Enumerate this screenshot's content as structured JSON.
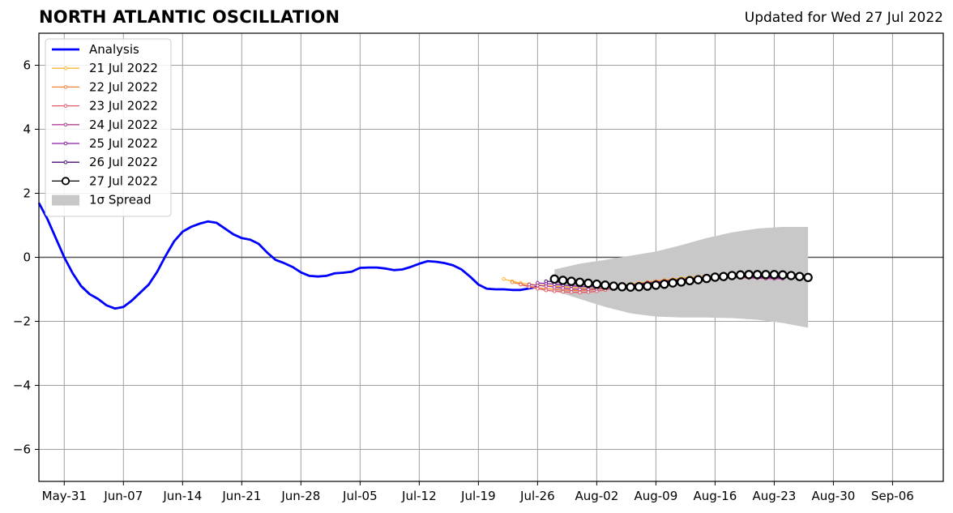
{
  "chart_data": {
    "type": "line",
    "title": "NORTH ATLANTIC OSCILLATION",
    "subtitle": "Updated for Wed 27 Jul 2022",
    "xlabel": "",
    "ylabel": "",
    "xlim": [
      "2022-05-28",
      "2022-09-12"
    ],
    "ylim": [
      -7,
      7
    ],
    "grid": true,
    "legend_position": "top-left",
    "x_tick_labels": [
      "May-31",
      "Jun-07",
      "Jun-14",
      "Jun-21",
      "Jun-28",
      "Jul-05",
      "Jul-12",
      "Jul-19",
      "Jul-26",
      "Aug-02",
      "Aug-09",
      "Aug-16",
      "Aug-23",
      "Aug-30",
      "Sep-06"
    ],
    "x_ticks": [
      "2022-05-31",
      "2022-06-07",
      "2022-06-14",
      "2022-06-21",
      "2022-06-28",
      "2022-07-05",
      "2022-07-12",
      "2022-07-19",
      "2022-07-26",
      "2022-08-02",
      "2022-08-09",
      "2022-08-16",
      "2022-08-23",
      "2022-08-30",
      "2022-09-06"
    ],
    "y_ticks": [
      6,
      4,
      2,
      0,
      -2,
      -4,
      -6
    ],
    "y_tick_labels": [
      "6",
      "4",
      "2",
      "0",
      "−2",
      "−4",
      "−6"
    ],
    "series": [
      {
        "name": "Analysis",
        "color": "#0000ff",
        "x": [
          "2022-05-28",
          "2022-05-29",
          "2022-05-30",
          "2022-05-31",
          "2022-06-01",
          "2022-06-02",
          "2022-06-03",
          "2022-06-04",
          "2022-06-05",
          "2022-06-06",
          "2022-06-07",
          "2022-06-08",
          "2022-06-09",
          "2022-06-10",
          "2022-06-11",
          "2022-06-12",
          "2022-06-13",
          "2022-06-14",
          "2022-06-15",
          "2022-06-16",
          "2022-06-17",
          "2022-06-18",
          "2022-06-19",
          "2022-06-20",
          "2022-06-21",
          "2022-06-22",
          "2022-06-23",
          "2022-06-24",
          "2022-06-25",
          "2022-06-26",
          "2022-06-27",
          "2022-06-28",
          "2022-06-29",
          "2022-06-30",
          "2022-07-01",
          "2022-07-02",
          "2022-07-03",
          "2022-07-04",
          "2022-07-05",
          "2022-07-06",
          "2022-07-07",
          "2022-07-08",
          "2022-07-09",
          "2022-07-10",
          "2022-07-11",
          "2022-07-12",
          "2022-07-13",
          "2022-07-14",
          "2022-07-15",
          "2022-07-16",
          "2022-07-17",
          "2022-07-18",
          "2022-07-19",
          "2022-07-20",
          "2022-07-21",
          "2022-07-22",
          "2022-07-23",
          "2022-07-24",
          "2022-07-25",
          "2022-07-26"
        ],
        "values": [
          1.7,
          1.2,
          0.6,
          0.0,
          -0.5,
          -0.9,
          -1.15,
          -1.3,
          -1.5,
          -1.6,
          -1.55,
          -1.35,
          -1.1,
          -0.85,
          -0.45,
          0.05,
          0.5,
          0.8,
          0.95,
          1.05,
          1.12,
          1.08,
          0.9,
          0.72,
          0.6,
          0.55,
          0.42,
          0.15,
          -0.08,
          -0.18,
          -0.3,
          -0.47,
          -0.58,
          -0.6,
          -0.58,
          -0.5,
          -0.48,
          -0.45,
          -0.33,
          -0.32,
          -0.32,
          -0.35,
          -0.4,
          -0.38,
          -0.3,
          -0.2,
          -0.12,
          -0.14,
          -0.18,
          -0.25,
          -0.38,
          -0.6,
          -0.85,
          -0.98,
          -1.0,
          -1.0,
          -1.02,
          -1.02,
          -0.97,
          -0.92
        ]
      },
      {
        "name": "21 Jul 2022",
        "color": "#fcb634",
        "x": [
          "2022-07-22",
          "2022-07-23",
          "2022-07-24",
          "2022-07-25",
          "2022-07-26",
          "2022-07-27",
          "2022-07-28",
          "2022-07-29",
          "2022-07-30",
          "2022-07-31",
          "2022-08-01",
          "2022-08-02",
          "2022-08-03",
          "2022-08-04",
          "2022-08-05",
          "2022-08-06",
          "2022-08-07",
          "2022-08-08",
          "2022-08-09",
          "2022-08-10",
          "2022-08-11",
          "2022-08-12",
          "2022-08-13",
          "2022-08-14",
          "2022-08-15"
        ],
        "values": [
          -0.68,
          -0.75,
          -0.8,
          -0.84,
          -0.86,
          -0.88,
          -0.9,
          -0.92,
          -0.94,
          -0.96,
          -0.98,
          -0.98,
          -0.95,
          -0.92,
          -0.87,
          -0.83,
          -0.8,
          -0.77,
          -0.74,
          -0.71,
          -0.68,
          -0.65,
          -0.62,
          -0.6,
          -0.58
        ]
      },
      {
        "name": "22 Jul 2022",
        "color": "#f4843c",
        "x": [
          "2022-07-23",
          "2022-07-24",
          "2022-07-25",
          "2022-07-26",
          "2022-07-27",
          "2022-07-28",
          "2022-07-29",
          "2022-07-30",
          "2022-07-31",
          "2022-08-01",
          "2022-08-02",
          "2022-08-03",
          "2022-08-04",
          "2022-08-05",
          "2022-08-06",
          "2022-08-07",
          "2022-08-08",
          "2022-08-09",
          "2022-08-10",
          "2022-08-11",
          "2022-08-12",
          "2022-08-13",
          "2022-08-14",
          "2022-08-15",
          "2022-08-16"
        ],
        "values": [
          -0.78,
          -0.84,
          -0.9,
          -0.95,
          -0.98,
          -1.0,
          -1.02,
          -1.03,
          -1.04,
          -1.03,
          -1.0,
          -0.97,
          -0.93,
          -0.9,
          -0.86,
          -0.82,
          -0.78,
          -0.75,
          -0.72,
          -0.7,
          -0.68,
          -0.66,
          -0.65,
          -0.64,
          -0.63
        ]
      },
      {
        "name": "23 Jul 2022",
        "color": "#e05a6a",
        "x": [
          "2022-07-24",
          "2022-07-25",
          "2022-07-26",
          "2022-07-27",
          "2022-07-28",
          "2022-07-29",
          "2022-07-30",
          "2022-07-31",
          "2022-08-01",
          "2022-08-02",
          "2022-08-03",
          "2022-08-04",
          "2022-08-05",
          "2022-08-06",
          "2022-08-07",
          "2022-08-08",
          "2022-08-09",
          "2022-08-10",
          "2022-08-11",
          "2022-08-12",
          "2022-08-13",
          "2022-08-14",
          "2022-08-15",
          "2022-08-16",
          "2022-08-17",
          "2022-08-18",
          "2022-08-19",
          "2022-08-20",
          "2022-08-21",
          "2022-08-22",
          "2022-08-23"
        ],
        "values": [
          -0.85,
          -0.92,
          -0.98,
          -1.03,
          -1.06,
          -1.08,
          -1.09,
          -1.1,
          -1.09,
          -1.06,
          -1.02,
          -0.97,
          -0.92,
          -0.88,
          -0.84,
          -0.8,
          -0.77,
          -0.74,
          -0.71,
          -0.69,
          -0.67,
          -0.65,
          -0.64,
          -0.63,
          -0.63,
          -0.63,
          -0.64,
          -0.64,
          -0.65,
          -0.66,
          -0.66
        ]
      },
      {
        "name": "24 Jul 2022",
        "color": "#b53f97",
        "x": [
          "2022-07-25",
          "2022-07-26",
          "2022-07-27",
          "2022-07-28",
          "2022-07-29",
          "2022-07-30",
          "2022-07-31",
          "2022-08-01",
          "2022-08-02",
          "2022-08-03",
          "2022-08-04",
          "2022-08-05",
          "2022-08-06",
          "2022-08-07",
          "2022-08-08",
          "2022-08-09",
          "2022-08-10",
          "2022-08-11",
          "2022-08-12",
          "2022-08-13",
          "2022-08-14",
          "2022-08-15",
          "2022-08-16",
          "2022-08-17",
          "2022-08-18",
          "2022-08-19",
          "2022-08-20",
          "2022-08-21",
          "2022-08-22",
          "2022-08-23",
          "2022-08-24"
        ],
        "values": [
          -0.85,
          -0.88,
          -0.9,
          -0.93,
          -0.96,
          -0.99,
          -1.0,
          -1.0,
          -0.98,
          -0.96,
          -0.93,
          -0.9,
          -0.87,
          -0.84,
          -0.81,
          -0.78,
          -0.75,
          -0.72,
          -0.7,
          -0.68,
          -0.66,
          -0.64,
          -0.63,
          -0.62,
          -0.62,
          -0.63,
          -0.64,
          -0.65,
          -0.66,
          -0.67,
          -0.67
        ]
      },
      {
        "name": "25 Jul 2022",
        "color": "#8b1fa4",
        "x": [
          "2022-07-26",
          "2022-07-27",
          "2022-07-28",
          "2022-07-29",
          "2022-07-30",
          "2022-07-31",
          "2022-08-01",
          "2022-08-02",
          "2022-08-03",
          "2022-08-04",
          "2022-08-05",
          "2022-08-06",
          "2022-08-07",
          "2022-08-08",
          "2022-08-09",
          "2022-08-10",
          "2022-08-11",
          "2022-08-12",
          "2022-08-13",
          "2022-08-14",
          "2022-08-15",
          "2022-08-16",
          "2022-08-17",
          "2022-08-18",
          "2022-08-19",
          "2022-08-20",
          "2022-08-21",
          "2022-08-22",
          "2022-08-23",
          "2022-08-24"
        ],
        "values": [
          -0.8,
          -0.82,
          -0.84,
          -0.87,
          -0.89,
          -0.91,
          -0.92,
          -0.92,
          -0.91,
          -0.9,
          -0.88,
          -0.86,
          -0.83,
          -0.8,
          -0.78,
          -0.75,
          -0.72,
          -0.7,
          -0.68,
          -0.66,
          -0.64,
          -0.62,
          -0.61,
          -0.6,
          -0.6,
          -0.61,
          -0.62,
          -0.63,
          -0.64,
          -0.65
        ]
      },
      {
        "name": "26 Jul 2022",
        "color": "#4a0c7e",
        "x": [
          "2022-07-27",
          "2022-07-28",
          "2022-07-29",
          "2022-07-30",
          "2022-07-31",
          "2022-08-01",
          "2022-08-02",
          "2022-08-03",
          "2022-08-04",
          "2022-08-05",
          "2022-08-06",
          "2022-08-07",
          "2022-08-08",
          "2022-08-09",
          "2022-08-10",
          "2022-08-11",
          "2022-08-12",
          "2022-08-13",
          "2022-08-14",
          "2022-08-15",
          "2022-08-16",
          "2022-08-17",
          "2022-08-18",
          "2022-08-19",
          "2022-08-20",
          "2022-08-21",
          "2022-08-22",
          "2022-08-23",
          "2022-08-24",
          "2022-08-25"
        ],
        "values": [
          -0.75,
          -0.76,
          -0.78,
          -0.8,
          -0.82,
          -0.84,
          -0.86,
          -0.87,
          -0.88,
          -0.88,
          -0.87,
          -0.85,
          -0.83,
          -0.8,
          -0.77,
          -0.74,
          -0.71,
          -0.68,
          -0.66,
          -0.64,
          -0.62,
          -0.6,
          -0.59,
          -0.58,
          -0.58,
          -0.59,
          -0.6,
          -0.61,
          -0.62,
          -0.63
        ]
      },
      {
        "name": "27 Jul 2022",
        "color": "#000000",
        "marker": "open-circle",
        "x": [
          "2022-07-28",
          "2022-07-29",
          "2022-07-30",
          "2022-07-31",
          "2022-08-01",
          "2022-08-02",
          "2022-08-03",
          "2022-08-04",
          "2022-08-05",
          "2022-08-06",
          "2022-08-07",
          "2022-08-08",
          "2022-08-09",
          "2022-08-10",
          "2022-08-11",
          "2022-08-12",
          "2022-08-13",
          "2022-08-14",
          "2022-08-15",
          "2022-08-16",
          "2022-08-17",
          "2022-08-18",
          "2022-08-19",
          "2022-08-20",
          "2022-08-21",
          "2022-08-22",
          "2022-08-23",
          "2022-08-24",
          "2022-08-25",
          "2022-08-26",
          "2022-08-27"
        ],
        "values": [
          -0.68,
          -0.72,
          -0.75,
          -0.78,
          -0.81,
          -0.84,
          -0.87,
          -0.9,
          -0.92,
          -0.93,
          -0.92,
          -0.9,
          -0.87,
          -0.84,
          -0.8,
          -0.77,
          -0.73,
          -0.7,
          -0.66,
          -0.62,
          -0.6,
          -0.57,
          -0.55,
          -0.54,
          -0.54,
          -0.54,
          -0.54,
          -0.55,
          -0.57,
          -0.6,
          -0.63
        ]
      }
    ],
    "spread": {
      "name": "1σ Spread",
      "color": "#c8c8c8",
      "x": [
        "2022-07-28",
        "2022-07-31",
        "2022-08-03",
        "2022-08-06",
        "2022-08-09",
        "2022-08-12",
        "2022-08-15",
        "2022-08-18",
        "2022-08-21",
        "2022-08-24",
        "2022-08-27"
      ],
      "upper": [
        -0.38,
        -0.2,
        -0.08,
        0.05,
        0.18,
        0.38,
        0.6,
        0.78,
        0.9,
        0.95,
        0.95
      ],
      "lower": [
        -1.05,
        -1.3,
        -1.55,
        -1.75,
        -1.85,
        -1.88,
        -1.88,
        -1.9,
        -1.95,
        -2.05,
        -2.2
      ]
    },
    "legend": [
      "Analysis",
      "21 Jul 2022",
      "22 Jul 2022",
      "23 Jul 2022",
      "24 Jul 2022",
      "25 Jul 2022",
      "26 Jul 2022",
      "27 Jul 2022",
      "1σ Spread"
    ]
  }
}
